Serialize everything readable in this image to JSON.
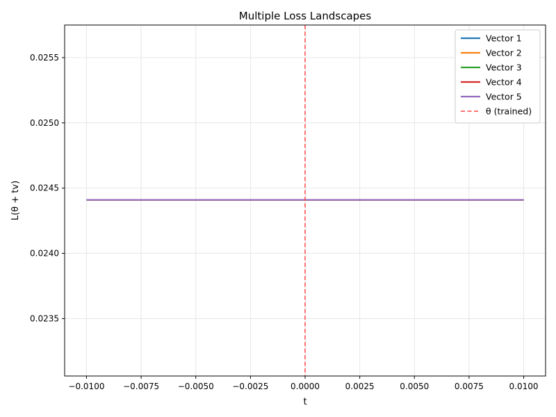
{
  "chart_data": {
    "type": "line",
    "title": "Multiple Loss Landscapes",
    "xlabel": "t",
    "ylabel": "L(θ + tv)",
    "xlim": [
      -0.011,
      0.011
    ],
    "ylim": [
      0.02306,
      0.02575
    ],
    "x_ticks": [
      -0.01,
      -0.0075,
      -0.005,
      -0.0025,
      0.0,
      0.0025,
      0.005,
      0.0075,
      0.01
    ],
    "x_tick_labels": [
      "−0.0100",
      "−0.0075",
      "−0.0050",
      "−0.0025",
      "0.0000",
      "0.0025",
      "0.0050",
      "0.0075",
      "0.0100"
    ],
    "y_ticks": [
      0.0235,
      0.024,
      0.0245,
      0.025,
      0.0255
    ],
    "y_tick_labels": [
      "0.0235",
      "0.0240",
      "0.0245",
      "0.0250",
      "0.0255"
    ],
    "grid": true,
    "legend_position": "top-right",
    "x": [
      -0.01,
      0.01
    ],
    "series": [
      {
        "name": "Vector 1",
        "color": "#1f77b4",
        "values": [
          0.02441,
          0.02441
        ]
      },
      {
        "name": "Vector 2",
        "color": "#ff7f0e",
        "values": [
          0.02441,
          0.02441
        ]
      },
      {
        "name": "Vector 3",
        "color": "#2ca02c",
        "values": [
          0.02441,
          0.02441
        ]
      },
      {
        "name": "Vector 4",
        "color": "#d62728",
        "values": [
          0.02441,
          0.02441
        ]
      },
      {
        "name": "Vector 5",
        "color": "#9467bd",
        "values": [
          0.02441,
          0.02441
        ]
      }
    ],
    "vline": {
      "x": 0.0,
      "label": "θ (trained)",
      "color": "#ff4444",
      "style": "dashed"
    }
  }
}
